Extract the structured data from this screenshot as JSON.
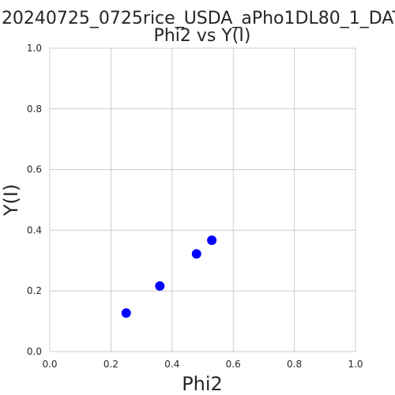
{
  "chart_data": {
    "type": "scatter",
    "title": [
      "20240725_0725rice_USDA_aPho1DL80_1_DAT",
      "Phi2 vs Y(I)"
    ],
    "xlabel": "Phi2",
    "ylabel": "Y(I)",
    "xlim": [
      0.0,
      1.0
    ],
    "ylim": [
      0.0,
      1.0
    ],
    "xticks": [
      "0.0",
      "0.2",
      "0.4",
      "0.6",
      "0.8",
      "1.0"
    ],
    "yticks": [
      "0.0",
      "0.2",
      "0.4",
      "0.6",
      "0.8",
      "1.0"
    ],
    "grid": true,
    "series": [
      {
        "color": "#0000ff",
        "points": [
          {
            "x": 0.25,
            "y": 0.127
          },
          {
            "x": 0.36,
            "y": 0.216
          },
          {
            "x": 0.48,
            "y": 0.322
          },
          {
            "x": 0.53,
            "y": 0.367
          }
        ]
      }
    ]
  }
}
